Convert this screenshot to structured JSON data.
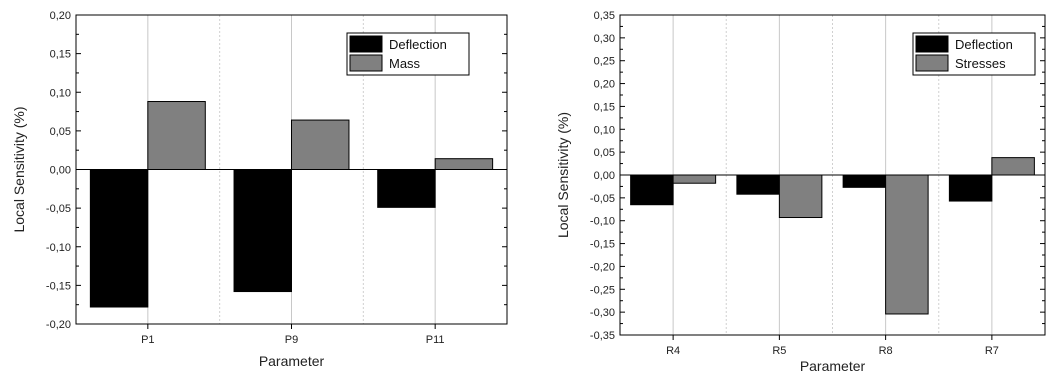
{
  "chart_data": [
    {
      "type": "bar",
      "title": "",
      "xlabel": "Parameter",
      "ylabel": "Local Sensitivity (%)",
      "categories": [
        "P1",
        "P9",
        "P11"
      ],
      "series": [
        {
          "name": "Deflection",
          "color": "#000000",
          "values": [
            -0.178,
            -0.158,
            -0.049
          ]
        },
        {
          "name": "Mass",
          "color": "#808080",
          "values": [
            0.088,
            0.064,
            0.014
          ]
        }
      ],
      "ylim": [
        -0.2,
        0.2
      ],
      "yticks": [
        "0,20",
        "0,15",
        "0,10",
        "0,05",
        "0,00",
        "-0,05",
        "-0,10",
        "-0,15",
        "-0,20"
      ],
      "grid": "vertical",
      "legend": "top-right"
    },
    {
      "type": "bar",
      "title": "",
      "xlabel": "Parameter",
      "ylabel": "Local Sensitivity (%)",
      "categories": [
        "R4",
        "R5",
        "R8",
        "R7"
      ],
      "series": [
        {
          "name": "Deflection",
          "color": "#000000",
          "values": [
            -0.065,
            -0.042,
            -0.027,
            -0.057
          ]
        },
        {
          "name": "Stresses",
          "color": "#808080",
          "values": [
            -0.018,
            -0.093,
            -0.304,
            0.038
          ]
        }
      ],
      "ylim": [
        -0.35,
        0.35
      ],
      "yticks": [
        "0,35",
        "0,30",
        "0,25",
        "0,20",
        "0,15",
        "0,10",
        "0,05",
        "0,00",
        "-0,05",
        "-0,10",
        "-0,15",
        "-0,20",
        "-0,25",
        "-0,30",
        "-0,35"
      ],
      "grid": "vertical",
      "legend": "top-right"
    }
  ]
}
